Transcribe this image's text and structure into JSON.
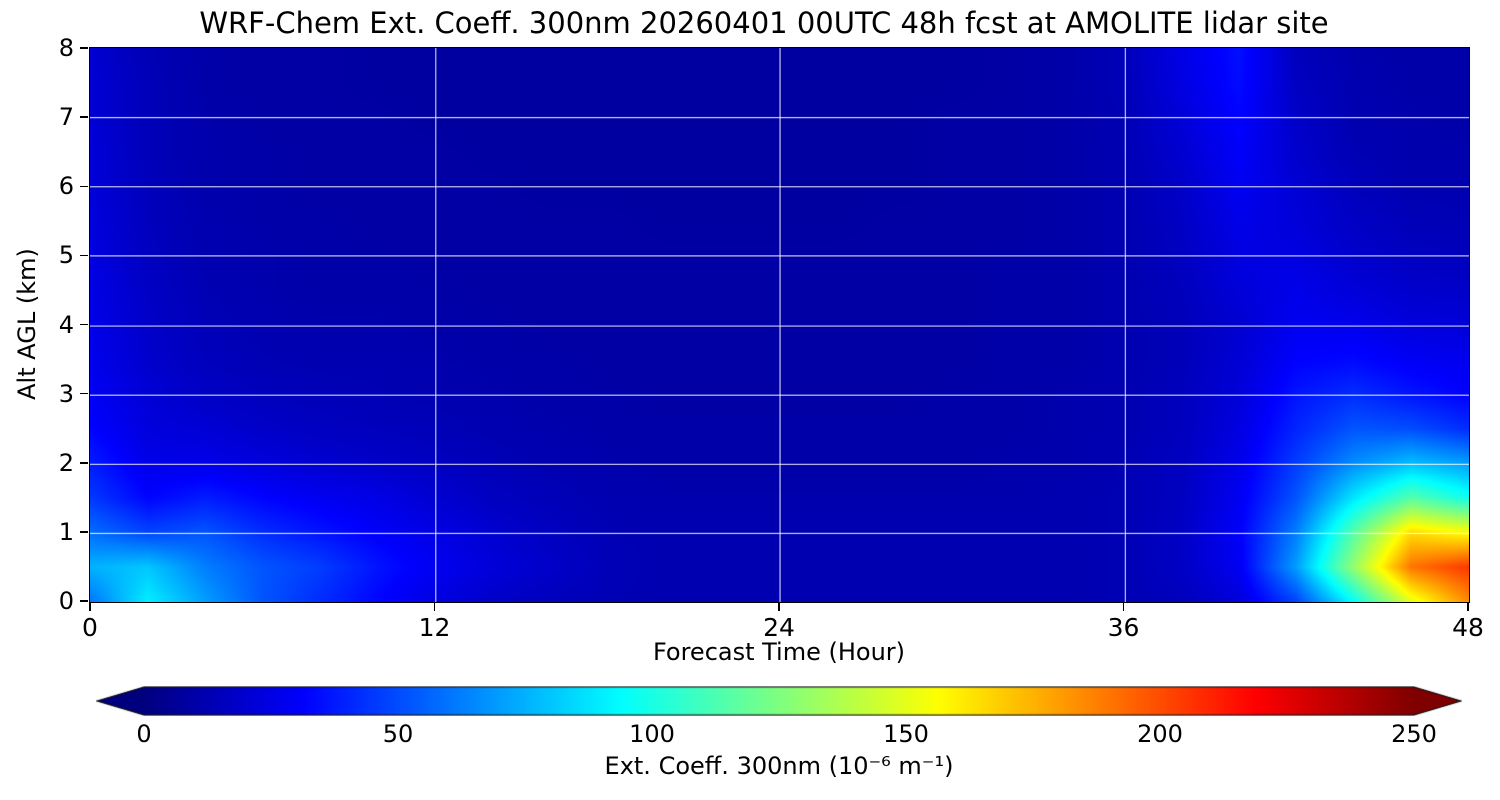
{
  "figure": {
    "title": "WRF-Chem Ext. Coeff. 300nm  20260401 00UTC 48h fcst at AMOLITE lidar site",
    "xlabel": "Forecast Time (Hour)",
    "ylabel": "Alt AGL (km)"
  },
  "chart_data": {
    "type": "heatmap",
    "title": "WRF-Chem Ext. Coeff. 300nm  20260401 00UTC 48h fcst at AMOLITE lidar site",
    "xlabel": "Forecast Time (Hour)",
    "ylabel": "Alt AGL (km)",
    "xlim": [
      0,
      48
    ],
    "ylim": [
      0,
      8
    ],
    "xticks": [
      0,
      12,
      24,
      36,
      48
    ],
    "yticks": [
      0,
      1,
      2,
      3,
      4,
      5,
      6,
      7,
      8
    ],
    "grid": true,
    "grid_color": "#ffffff",
    "colormap": "jet",
    "color_scale": {
      "vmin": 0,
      "vmax": 250,
      "extend": "both"
    },
    "colorbar": {
      "ticks": [
        0,
        50,
        100,
        150,
        200,
        250
      ],
      "label": "Ext. Coeff. 300nm  (10⁻⁶ m⁻¹)"
    },
    "x_hours": [
      0,
      2,
      4,
      6,
      8,
      10,
      12,
      14,
      16,
      18,
      20,
      22,
      24,
      26,
      28,
      30,
      32,
      34,
      36,
      38,
      40,
      42,
      44,
      46,
      48
    ],
    "y_alt_km": [
      0,
      0.5,
      1,
      1.5,
      2,
      2.5,
      3,
      3.5,
      4,
      4.5,
      5,
      5.5,
      6,
      6.5,
      7,
      7.5,
      8
    ],
    "values_note": "Estimated extinction coefficient (10^-6 m^-1); rows ordered by ascending altitude (0 km first), columns by forecast hour.",
    "values_by_altitude_row": [
      [
        60,
        90,
        70,
        52,
        42,
        32,
        24,
        18,
        15,
        13,
        12,
        12,
        12,
        12,
        12,
        12,
        12,
        12,
        13,
        15,
        22,
        48,
        95,
        150,
        185
      ],
      [
        75,
        80,
        62,
        52,
        46,
        36,
        28,
        22,
        18,
        14,
        12,
        12,
        12,
        12,
        12,
        12,
        12,
        12,
        13,
        17,
        28,
        70,
        130,
        190,
        205
      ],
      [
        58,
        48,
        52,
        42,
        36,
        30,
        25,
        20,
        16,
        13,
        12,
        12,
        12,
        12,
        12,
        12,
        12,
        12,
        13,
        17,
        30,
        62,
        115,
        165,
        155
      ],
      [
        45,
        32,
        38,
        32,
        28,
        25,
        20,
        16,
        14,
        12,
        11,
        11,
        11,
        11,
        11,
        11,
        11,
        12,
        13,
        16,
        28,
        52,
        88,
        115,
        98
      ],
      [
        38,
        26,
        26,
        23,
        20,
        18,
        16,
        14,
        12,
        11,
        10,
        10,
        10,
        10,
        10,
        10,
        11,
        11,
        13,
        16,
        26,
        46,
        66,
        78,
        70
      ],
      [
        32,
        23,
        21,
        18,
        16,
        15,
        14,
        12,
        11,
        10,
        10,
        10,
        10,
        10,
        10,
        10,
        10,
        11,
        12,
        15,
        24,
        40,
        52,
        50,
        42
      ],
      [
        29,
        21,
        17,
        15,
        14,
        13,
        12,
        11,
        10,
        10,
        9,
        9,
        9,
        9,
        9,
        10,
        10,
        11,
        12,
        15,
        22,
        36,
        42,
        36,
        31
      ],
      [
        27,
        19,
        15,
        13,
        12,
        12,
        11,
        10,
        10,
        9,
        9,
        9,
        9,
        9,
        9,
        9,
        10,
        10,
        12,
        14,
        21,
        31,
        33,
        29,
        27
      ],
      [
        26,
        18,
        14,
        12,
        11,
        11,
        10,
        10,
        9,
        9,
        9,
        9,
        9,
        9,
        9,
        9,
        10,
        10,
        12,
        14,
        20,
        28,
        27,
        23,
        22
      ],
      [
        25,
        17,
        13,
        11,
        10,
        10,
        10,
        9,
        9,
        9,
        9,
        9,
        9,
        9,
        9,
        9,
        10,
        10,
        12,
        15,
        22,
        26,
        22,
        19,
        18
      ],
      [
        24,
        16,
        12,
        11,
        10,
        10,
        9,
        9,
        9,
        9,
        9,
        9,
        9,
        9,
        9,
        9,
        10,
        10,
        12,
        16,
        24,
        24,
        19,
        16,
        15
      ],
      [
        23,
        15,
        12,
        10,
        10,
        9,
        9,
        9,
        9,
        9,
        8,
        8,
        8,
        8,
        9,
        9,
        9,
        10,
        12,
        17,
        26,
        22,
        17,
        14,
        13
      ],
      [
        22,
        15,
        11,
        10,
        9,
        9,
        9,
        9,
        8,
        8,
        8,
        8,
        8,
        8,
        8,
        9,
        9,
        10,
        12,
        18,
        28,
        21,
        15,
        12,
        12
      ],
      [
        22,
        14,
        11,
        10,
        9,
        9,
        9,
        8,
        8,
        8,
        8,
        8,
        8,
        8,
        8,
        9,
        9,
        10,
        13,
        20,
        30,
        19,
        13,
        11,
        11
      ],
      [
        21,
        14,
        11,
        9,
        9,
        9,
        8,
        8,
        8,
        8,
        8,
        8,
        8,
        8,
        8,
        9,
        9,
        10,
        13,
        22,
        32,
        18,
        12,
        11,
        10
      ],
      [
        21,
        14,
        10,
        9,
        9,
        8,
        8,
        8,
        8,
        8,
        8,
        8,
        8,
        8,
        8,
        8,
        9,
        10,
        14,
        24,
        34,
        16,
        12,
        10,
        10
      ],
      [
        20,
        13,
        10,
        9,
        9,
        8,
        8,
        8,
        8,
        8,
        8,
        8,
        8,
        8,
        8,
        8,
        9,
        10,
        14,
        25,
        35,
        15,
        11,
        10,
        10
      ]
    ]
  }
}
